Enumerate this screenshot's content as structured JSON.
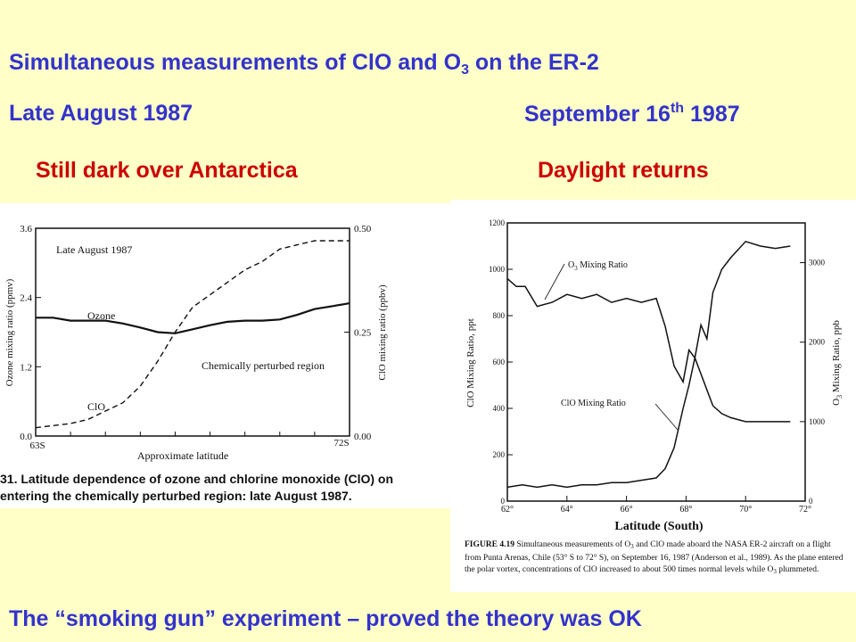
{
  "slide": {
    "title_pre": "Simultaneous measurements of ClO and O",
    "title_sub": "3",
    "title_post": " on the ER-2",
    "left_date": "Late August 1987",
    "right_date_pre": "September 16",
    "right_date_sup": "th",
    "right_date_post": " 1987",
    "left_subtitle": "Still dark over Antarctica",
    "right_subtitle": "Daylight returns",
    "footer": "The “smoking gun” experiment – proved the theory was OK"
  },
  "colors": {
    "background": "#FFFFC8",
    "heading": "#3333CC",
    "subheading": "#CC0000"
  },
  "left_figure": {
    "caption_line1": "31.  Latitude dependence of ozone and chlorine monoxide (ClO) on",
    "caption_line2": "entering the chemically perturbed region: late August 1987.",
    "xlabel": "Approximate latitude",
    "ylabel_left": "Ozone mixing ratio (ppmv)",
    "ylabel_right": "ClO mixing ratio (ppbv)",
    "x_start_label": "63S",
    "x_end_label": "72S",
    "left_ticks": [
      "3.6",
      "2.4",
      "1.2",
      "0.0"
    ],
    "right_ticks": [
      "0.50",
      "0.25",
      "0.00"
    ],
    "inset_label": "Late August 1987",
    "ozone_label": "Ozone",
    "clo_label": "ClO",
    "region_label": "Chemically perturbed region"
  },
  "right_figure": {
    "ylabel_left": "ClO Mixing Ratio, ppt",
    "ylabel_right_pre": "O",
    "ylabel_right_sub": "3",
    "ylabel_right_post": " Mixing Ratio, ppb",
    "xlabel": "Latitude (South)",
    "o3_label_pre": "O",
    "o3_label_sub": "3",
    "o3_label_post": " Mixing Ratio",
    "clo_label": "ClO Mixing Ratio",
    "caption_bold": "FIGURE 4.19",
    "caption_pre": "  Simultaneous measurements of O",
    "caption_sub1": "3",
    "caption_mid": " and ClO made aboard the NASA ER-2 aircraft on a flight from Punta Arenas, Chile (53° S to 72° S), on September 16, 1987 (Anderson et al., 1989). As the plane entered the polar vortex, concentrations of ClO increased to about 500 times normal levels while O",
    "caption_sub2": "3",
    "caption_end": " plummeted."
  },
  "chart_data": [
    {
      "type": "line",
      "title": "Late August 1987",
      "xlabel": "Approximate latitude",
      "ylabel": "Ozone mixing ratio (ppmv)",
      "y2label": "ClO mixing ratio (ppbv)",
      "xlim": [
        63,
        72
      ],
      "ylim": [
        0,
        3.6
      ],
      "y2lim": [
        0,
        0.5
      ],
      "series": [
        {
          "name": "Ozone",
          "axis": "left",
          "x": [
            63,
            63.5,
            64,
            64.5,
            65,
            65.5,
            66,
            66.5,
            67,
            67.5,
            68,
            68.5,
            69,
            69.5,
            70,
            70.5,
            71,
            71.5,
            72
          ],
          "y": [
            2.05,
            2.05,
            2.0,
            2.0,
            2.0,
            1.95,
            1.88,
            1.8,
            1.78,
            1.85,
            1.92,
            1.98,
            2.0,
            2.0,
            2.02,
            2.1,
            2.2,
            2.25,
            2.3
          ]
        },
        {
          "name": "ClO",
          "axis": "right",
          "x": [
            63,
            63.5,
            64,
            64.5,
            65,
            65.5,
            66,
            66.5,
            67,
            67.5,
            68,
            68.5,
            69,
            69.5,
            70,
            70.5,
            71,
            71.5,
            72
          ],
          "y": [
            0.02,
            0.025,
            0.03,
            0.04,
            0.06,
            0.08,
            0.12,
            0.18,
            0.25,
            0.31,
            0.34,
            0.37,
            0.4,
            0.42,
            0.45,
            0.46,
            0.47,
            0.47,
            0.47
          ]
        }
      ]
    },
    {
      "type": "line",
      "xlabel": "Latitude (South)",
      "ylabel": "ClO Mixing Ratio, ppt",
      "y2label": "O3 Mixing Ratio, ppb",
      "xlim": [
        62,
        72
      ],
      "ylim": [
        0,
        1200
      ],
      "y2lim": [
        0,
        3500
      ],
      "x_ticks": [
        "62°",
        "64°",
        "66°",
        "68°",
        "70°",
        "72°"
      ],
      "y_ticks": [
        "0",
        "200",
        "400",
        "600",
        "800",
        "1000",
        "1200"
      ],
      "y2_ticks": [
        "0",
        "1000",
        "2000",
        "3000"
      ],
      "series": [
        {
          "name": "O3 Mixing Ratio",
          "axis": "right",
          "x": [
            62,
            62.3,
            62.6,
            63,
            63.5,
            64,
            64.5,
            65,
            65.5,
            66,
            66.5,
            67,
            67.3,
            67.6,
            67.9,
            68.1,
            68.3,
            68.5,
            68.7,
            68.9,
            69.2,
            69.5,
            70,
            70.5,
            71,
            71.5
          ],
          "y": [
            2800,
            2700,
            2700,
            2450,
            2500,
            2600,
            2550,
            2600,
            2500,
            2550,
            2500,
            2550,
            2200,
            1700,
            1500,
            1900,
            1800,
            1600,
            1400,
            1200,
            1100,
            1050,
            1000,
            1000,
            1000,
            1000
          ]
        },
        {
          "name": "ClO Mixing Ratio",
          "axis": "left",
          "x": [
            62,
            62.5,
            63,
            63.5,
            64,
            64.5,
            65,
            65.5,
            66,
            66.5,
            67,
            67.3,
            67.6,
            67.9,
            68.1,
            68.3,
            68.5,
            68.7,
            68.9,
            69.2,
            69.5,
            70,
            70.5,
            71,
            71.5
          ],
          "y": [
            60,
            70,
            60,
            70,
            60,
            70,
            70,
            80,
            80,
            90,
            100,
            140,
            230,
            400,
            500,
            620,
            760,
            700,
            900,
            1000,
            1050,
            1120,
            1100,
            1090,
            1100
          ]
        }
      ]
    }
  ]
}
